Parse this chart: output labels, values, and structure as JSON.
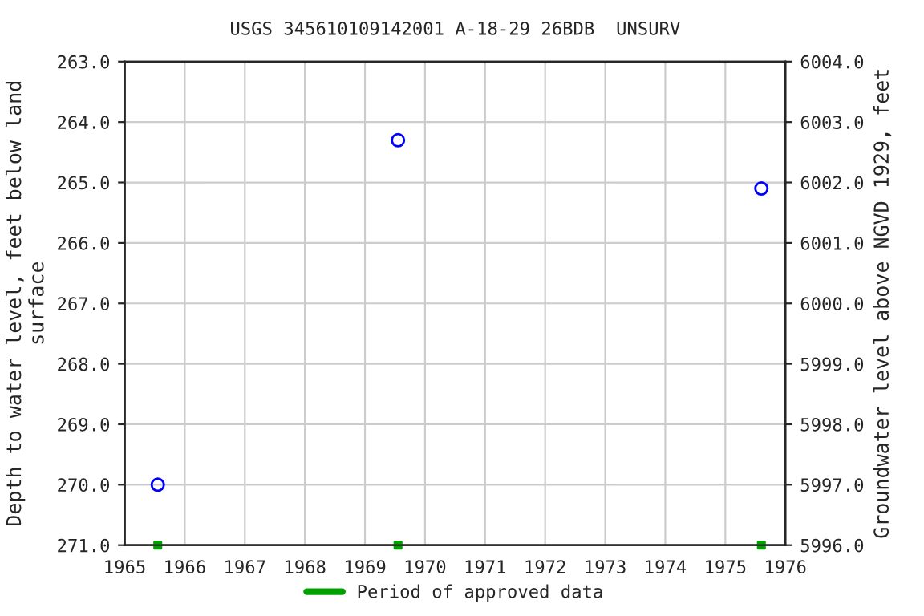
{
  "chart_data": {
    "type": "scatter",
    "title": "USGS 345610109142001 A-18-29 26BDB  UNSURV",
    "xlabel": null,
    "ylabel": "Depth to water level, feet below land\nsurface",
    "y2label": "Groundwater level above NGVD 1929, feet",
    "series": [
      {
        "color": "#0000ff",
        "x": [
          1965.55,
          1969.55,
          1975.6
        ],
        "values": [
          270.0,
          264.3,
          265.1
        ],
        "marker": "circle"
      },
      {
        "name": "Period of approved data",
        "color": "#00a000",
        "x": [
          1965.55,
          1969.55,
          1975.6
        ],
        "values": [
          271.0,
          271.0,
          271.0
        ],
        "marker": "square"
      }
    ],
    "xlim": [
      1965,
      1976
    ],
    "xticks": [
      1965,
      1966,
      1967,
      1968,
      1969,
      1970,
      1971,
      1972,
      1973,
      1974,
      1975,
      1976
    ],
    "ylim": [
      271.0,
      263.0
    ],
    "yticks": [
      {
        "value": 263,
        "label": "263.0"
      },
      {
        "value": 264,
        "label": "264.0"
      },
      {
        "value": 265,
        "label": "265.0"
      },
      {
        "value": 266,
        "label": "266.0"
      },
      {
        "value": 267,
        "label": "267.0"
      },
      {
        "value": 268,
        "label": "268.0"
      },
      {
        "value": 269,
        "label": "269.0"
      },
      {
        "value": 270,
        "label": "270.0"
      },
      {
        "value": 271,
        "label": "271.0"
      }
    ],
    "y2lim": [
      5996.0,
      6004.0
    ],
    "y2ticks": [
      {
        "value": 5996,
        "label": "5996.0"
      },
      {
        "value": 5997,
        "label": "5997.0"
      },
      {
        "value": 5998,
        "label": "5998.0"
      },
      {
        "value": 5999,
        "label": "5999.0"
      },
      {
        "value": 6000,
        "label": "6000.0"
      },
      {
        "value": 6001,
        "label": "6001.0"
      },
      {
        "value": 6002,
        "label": "6002.0"
      },
      {
        "value": 6003,
        "label": "6003.0"
      },
      {
        "value": 6004,
        "label": "6004.0"
      }
    ],
    "grid": true,
    "legend": "bottom"
  }
}
